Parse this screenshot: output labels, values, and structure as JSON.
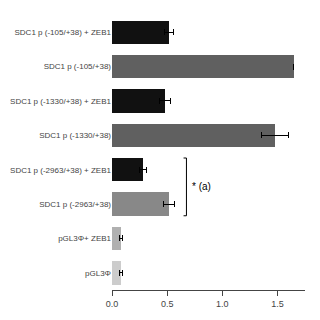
{
  "chart_data": {
    "type": "bar",
    "orientation": "horizontal",
    "categories": [
      "SDC1 p (-105/+38) + ZEB1",
      "SDC1 p (-105/+38)",
      "SDC1 p (-1330/+38) + ZEB1",
      "SDC1 p (-1330/+38)",
      "SDC1 p (-2963/+38) + ZEB1",
      "SDC1 p (-2963/+38)",
      "pGL3Φ+ ZEB1",
      "pGL3Φ"
    ],
    "values": [
      0.52,
      1.65,
      0.48,
      1.48,
      0.28,
      0.52,
      0.08,
      0.08
    ],
    "errors": [
      0.04,
      0.0,
      0.05,
      0.12,
      0.03,
      0.05,
      0.015,
      0.015
    ],
    "colors": [
      "#111111",
      "#606060",
      "#111111",
      "#606060",
      "#111111",
      "#888888",
      "#b0b0b0",
      "#cccccc"
    ],
    "xlim": [
      0,
      1.75
    ],
    "xticks": [
      {
        "value": 0.0,
        "label": "0.0"
      },
      {
        "value": 0.5,
        "label": "0.5"
      },
      {
        "value": 1.0,
        "label": "1.0"
      },
      {
        "value": 1.5,
        "label": "1.5"
      }
    ],
    "grid": false,
    "annotations": [
      {
        "text": "* (a)",
        "categories": [
          "SDC1 p (-2963/+38) + ZEB1",
          "SDC1 p (-2963/+38)"
        ]
      }
    ]
  }
}
